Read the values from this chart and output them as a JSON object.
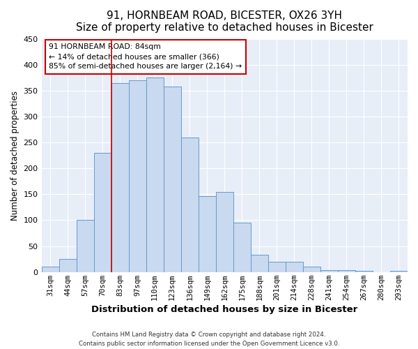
{
  "title": "91, HORNBEAM ROAD, BICESTER, OX26 3YH",
  "subtitle": "Size of property relative to detached houses in Bicester",
  "xlabel": "Distribution of detached houses by size in Bicester",
  "ylabel": "Number of detached properties",
  "bar_labels": [
    "31sqm",
    "44sqm",
    "57sqm",
    "70sqm",
    "83sqm",
    "97sqm",
    "110sqm",
    "123sqm",
    "136sqm",
    "149sqm",
    "162sqm",
    "175sqm",
    "188sqm",
    "201sqm",
    "214sqm",
    "228sqm",
    "241sqm",
    "254sqm",
    "267sqm",
    "280sqm",
    "293sqm"
  ],
  "bar_heights": [
    10,
    25,
    100,
    230,
    365,
    370,
    375,
    358,
    260,
    147,
    155,
    95,
    33,
    20,
    20,
    10,
    4,
    4,
    3,
    0,
    3
  ],
  "bar_color": "#c9d9ef",
  "bar_edge_color": "#6699cc",
  "ylim": [
    0,
    450
  ],
  "yticks": [
    0,
    50,
    100,
    150,
    200,
    250,
    300,
    350,
    400,
    450
  ],
  "annotation_title": "91 HORNBEAM ROAD: 84sqm",
  "annotation_line1": "← 14% of detached houses are smaller (366)",
  "annotation_line2": "85% of semi-detached houses are larger (2,164) →",
  "annotation_box_color": "#ffffff",
  "annotation_border_color": "#cc0000",
  "footer_line1": "Contains HM Land Registry data © Crown copyright and database right 2024.",
  "footer_line2": "Contains public sector information licensed under the Open Government Licence v3.0.",
  "background_color": "#ffffff",
  "plot_bg_color": "#e8eef8",
  "grid_color": "#ffffff",
  "title_fontsize": 11,
  "subtitle_fontsize": 10
}
